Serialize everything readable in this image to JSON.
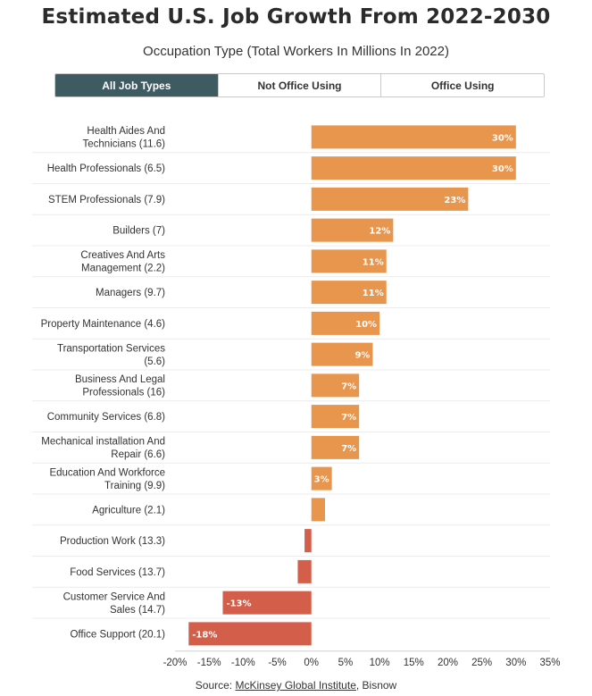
{
  "title": "Estimated U.S. Job Growth From 2022-2030",
  "subtitle": "Occupation Type (Total Workers In Millions In 2022)",
  "tabs": [
    {
      "label": "All Job Types",
      "active": true
    },
    {
      "label": "Not Office Using",
      "active": false
    },
    {
      "label": "Office Using",
      "active": false
    }
  ],
  "source": {
    "prefix": "Source: ",
    "link": "McKinsey Global Institute",
    "suffix": ", Bisnow"
  },
  "colors": {
    "positive": "#e8954d",
    "negative": "#d35f4a",
    "active_tab": "#3d5b61"
  },
  "chart_data": {
    "type": "bar",
    "orientation": "horizontal",
    "xlabel": "",
    "ylabel": "",
    "xlim": [
      -20,
      35
    ],
    "x_ticks": [
      "-20%",
      "-15%",
      "-10%",
      "-5%",
      "0%",
      "5%",
      "10%",
      "15%",
      "20%",
      "25%",
      "30%",
      "35%"
    ],
    "categories": [
      [
        "Health Aides And",
        "Technicians (11.6)"
      ],
      [
        "Health Professionals (6.5)"
      ],
      [
        "STEM Professionals (7.9)"
      ],
      [
        "Builders (7)"
      ],
      [
        "Creatives And Arts",
        "Management (2.2)"
      ],
      [
        "Managers (9.7)"
      ],
      [
        "Property Maintenance (4.6)"
      ],
      [
        "Transportation Services",
        "(5.6)"
      ],
      [
        "Business And Legal",
        "Professionals (16)"
      ],
      [
        "Community Services (6.8)"
      ],
      [
        "Mechanical installation And",
        "Repair (6.6)"
      ],
      [
        "Education And Workforce",
        "Training (9.9)"
      ],
      [
        "Agriculture (2.1)"
      ],
      [
        "Production Work (13.3)"
      ],
      [
        "Food Services (13.7)"
      ],
      [
        "Customer Service And",
        "Sales (14.7)"
      ],
      [
        "Office Support (20.1)"
      ]
    ],
    "values": [
      30,
      30,
      23,
      12,
      11,
      11,
      10,
      9,
      7,
      7,
      7,
      3,
      2,
      -1,
      -2,
      -13,
      -18
    ],
    "labels": [
      "30%",
      "30%",
      "23%",
      "12%",
      "11%",
      "11%",
      "10%",
      "9%",
      "7%",
      "7%",
      "7%",
      "3%",
      "",
      "",
      "",
      "-13%",
      "-18%"
    ]
  }
}
